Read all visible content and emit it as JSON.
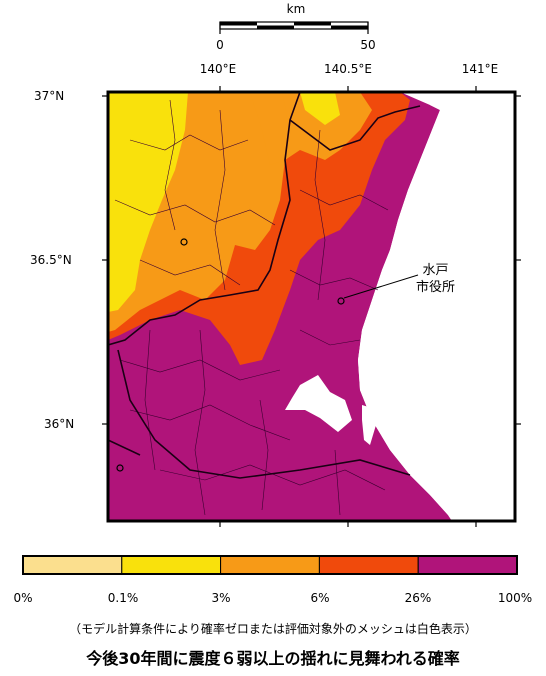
{
  "scale_bar": {
    "unit": "km",
    "labels": [
      "0",
      "50"
    ]
  },
  "longitude_labels": [
    "140°E",
    "140.5°E",
    "141°E"
  ],
  "latitude_labels": [
    "37°N",
    "36.5°N",
    "36°N"
  ],
  "marker": {
    "label_lines": [
      "水戸",
      "市役所"
    ]
  },
  "legend": {
    "labels": [
      "0%",
      "0.1%",
      "3%",
      "6%",
      "26%",
      "100%"
    ],
    "colors": [
      "#fbdf8e",
      "#f9e10c",
      "#f79a17",
      "#f04a0c",
      "#b0147a"
    ]
  },
  "note": "（モデル計算条件により確率ゼロまたは評価対象外のメッシュは白色表示）",
  "title": "今後30年間に震度６弱以上の揺れに見舞われる確率"
}
